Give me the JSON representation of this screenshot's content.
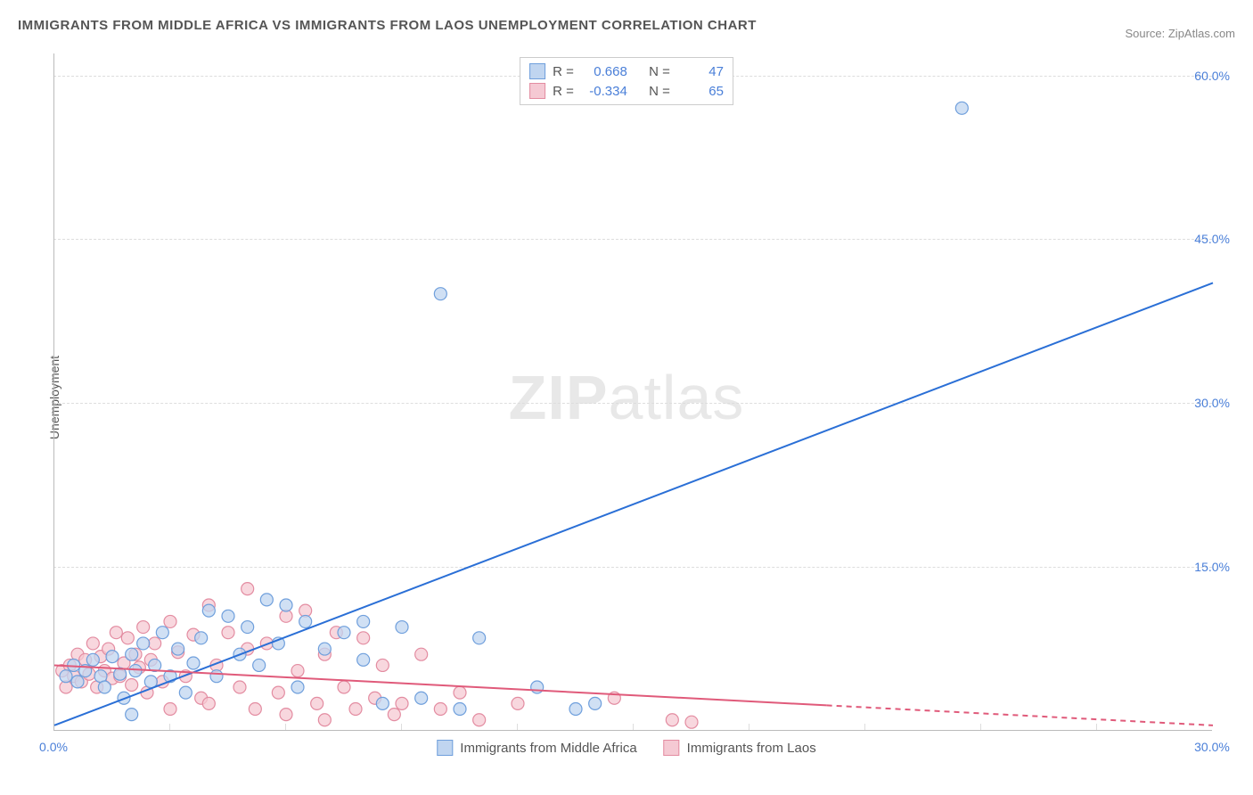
{
  "title": "IMMIGRANTS FROM MIDDLE AFRICA VS IMMIGRANTS FROM LAOS UNEMPLOYMENT CORRELATION CHART",
  "source": "Source: ZipAtlas.com",
  "watermark": {
    "part1": "ZIP",
    "part2": "atlas"
  },
  "ylabel": "Unemployment",
  "chart": {
    "type": "scatter",
    "xlim": [
      0,
      30.0
    ],
    "ylim": [
      0,
      62.0
    ],
    "xtick_labels": [
      "0.0%",
      "30.0%"
    ],
    "xtick_positions": [
      0,
      30.0
    ],
    "xtick_minor": [
      3,
      6,
      9,
      12,
      15,
      18,
      21,
      24,
      27
    ],
    "ytick_labels": [
      "15.0%",
      "30.0%",
      "45.0%",
      "60.0%"
    ],
    "ytick_positions": [
      15.0,
      30.0,
      45.0,
      60.0
    ],
    "background_color": "#ffffff",
    "grid_color": "#dddddd",
    "axis_color": "#bbbbbb",
    "tick_font_color": "#4a7fd8",
    "marker_radius": 7,
    "marker_stroke_width": 1.2,
    "line_width": 2
  },
  "series": [
    {
      "name": "Immigrants from Middle Africa",
      "fill": "#c0d5f0",
      "stroke": "#6f9fdc",
      "line_color": "#2a6fd6",
      "R": "0.668",
      "N": "47",
      "trend": {
        "x1": 0,
        "y1": 0.5,
        "x2": 30.0,
        "y2": 41.0,
        "dash_from_x": null
      },
      "points": [
        [
          0.3,
          5.0
        ],
        [
          0.5,
          6.0
        ],
        [
          0.6,
          4.5
        ],
        [
          0.8,
          5.5
        ],
        [
          1.0,
          6.5
        ],
        [
          1.2,
          5.0
        ],
        [
          1.3,
          4.0
        ],
        [
          1.5,
          6.8
        ],
        [
          1.7,
          5.2
        ],
        [
          1.8,
          3.0
        ],
        [
          2.0,
          7.0
        ],
        [
          2.1,
          5.5
        ],
        [
          2.3,
          8.0
        ],
        [
          2.5,
          4.5
        ],
        [
          2.6,
          6.0
        ],
        [
          2.8,
          9.0
        ],
        [
          3.0,
          5.0
        ],
        [
          3.2,
          7.5
        ],
        [
          3.4,
          3.5
        ],
        [
          3.6,
          6.2
        ],
        [
          3.8,
          8.5
        ],
        [
          4.0,
          11.0
        ],
        [
          4.2,
          5.0
        ],
        [
          4.5,
          10.5
        ],
        [
          4.8,
          7.0
        ],
        [
          5.0,
          9.5
        ],
        [
          5.3,
          6.0
        ],
        [
          5.5,
          12.0
        ],
        [
          5.8,
          8.0
        ],
        [
          6.0,
          11.5
        ],
        [
          6.3,
          4.0
        ],
        [
          6.5,
          10.0
        ],
        [
          7.0,
          7.5
        ],
        [
          7.5,
          9.0
        ],
        [
          8.0,
          6.5
        ],
        [
          8.0,
          10.0
        ],
        [
          8.5,
          2.5
        ],
        [
          9.0,
          9.5
        ],
        [
          9.5,
          3.0
        ],
        [
          10.0,
          40.0
        ],
        [
          10.5,
          2.0
        ],
        [
          11.0,
          8.5
        ],
        [
          12.5,
          4.0
        ],
        [
          13.5,
          2.0
        ],
        [
          14.0,
          2.5
        ],
        [
          23.5,
          57.0
        ],
        [
          2.0,
          1.5
        ]
      ]
    },
    {
      "name": "Immigrants from Laos",
      "fill": "#f5c9d3",
      "stroke": "#e38ca1",
      "line_color": "#e05a7a",
      "R": "-0.334",
      "N": "65",
      "trend": {
        "x1": 0,
        "y1": 6.0,
        "x2": 30.0,
        "y2": 0.5,
        "dash_from_x": 20.0
      },
      "points": [
        [
          0.2,
          5.5
        ],
        [
          0.3,
          4.0
        ],
        [
          0.4,
          6.0
        ],
        [
          0.5,
          5.0
        ],
        [
          0.6,
          7.0
        ],
        [
          0.7,
          4.5
        ],
        [
          0.8,
          6.5
        ],
        [
          0.9,
          5.2
        ],
        [
          1.0,
          8.0
        ],
        [
          1.1,
          4.0
        ],
        [
          1.2,
          6.8
        ],
        [
          1.3,
          5.5
        ],
        [
          1.4,
          7.5
        ],
        [
          1.5,
          4.8
        ],
        [
          1.6,
          9.0
        ],
        [
          1.7,
          5.0
        ],
        [
          1.8,
          6.2
        ],
        [
          1.9,
          8.5
        ],
        [
          2.0,
          4.2
        ],
        [
          2.1,
          7.0
        ],
        [
          2.2,
          5.8
        ],
        [
          2.3,
          9.5
        ],
        [
          2.4,
          3.5
        ],
        [
          2.5,
          6.5
        ],
        [
          2.6,
          8.0
        ],
        [
          2.8,
          4.5
        ],
        [
          3.0,
          10.0
        ],
        [
          3.0,
          2.0
        ],
        [
          3.2,
          7.2
        ],
        [
          3.4,
          5.0
        ],
        [
          3.6,
          8.8
        ],
        [
          3.8,
          3.0
        ],
        [
          4.0,
          11.5
        ],
        [
          4.0,
          2.5
        ],
        [
          4.2,
          6.0
        ],
        [
          4.5,
          9.0
        ],
        [
          4.8,
          4.0
        ],
        [
          5.0,
          7.5
        ],
        [
          5.0,
          13.0
        ],
        [
          5.2,
          2.0
        ],
        [
          5.5,
          8.0
        ],
        [
          5.8,
          3.5
        ],
        [
          6.0,
          10.5
        ],
        [
          6.0,
          1.5
        ],
        [
          6.3,
          5.5
        ],
        [
          6.5,
          11.0
        ],
        [
          6.8,
          2.5
        ],
        [
          7.0,
          7.0
        ],
        [
          7.0,
          1.0
        ],
        [
          7.3,
          9.0
        ],
        [
          7.5,
          4.0
        ],
        [
          7.8,
          2.0
        ],
        [
          8.0,
          8.5
        ],
        [
          8.3,
          3.0
        ],
        [
          8.5,
          6.0
        ],
        [
          8.8,
          1.5
        ],
        [
          9.0,
          2.5
        ],
        [
          9.5,
          7.0
        ],
        [
          10.0,
          2.0
        ],
        [
          10.5,
          3.5
        ],
        [
          11.0,
          1.0
        ],
        [
          12.0,
          2.5
        ],
        [
          14.5,
          3.0
        ],
        [
          16.0,
          1.0
        ],
        [
          16.5,
          0.8
        ]
      ]
    }
  ],
  "stats_legend": {
    "R_label": "R =",
    "N_label": "N ="
  }
}
